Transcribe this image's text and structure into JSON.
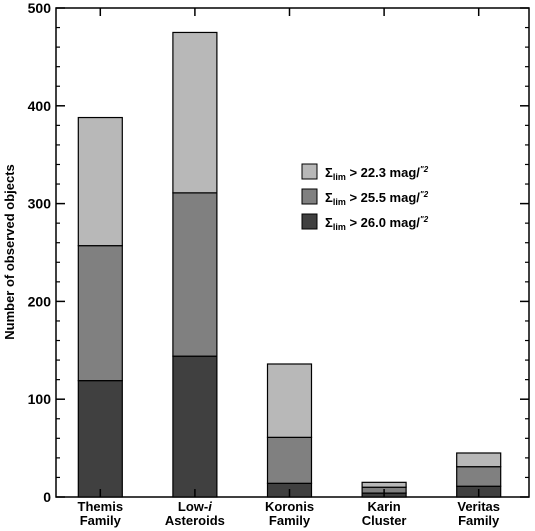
{
  "chart_data": {
    "type": "bar",
    "stacked": true,
    "categories": [
      [
        "Themis",
        "Family"
      ],
      [
        "Low-i",
        "Asteroids"
      ],
      [
        "Koronis",
        "Family"
      ],
      [
        "Karin",
        "Cluster"
      ],
      [
        "Veritas",
        "Family"
      ]
    ],
    "series": [
      {
        "name": "Σlim > 26.0 mag/\"2",
        "label_main": "Σ",
        "label_sub": "lim",
        "label_rest": " > 26.0 mag/",
        "label_sup": "\"2",
        "color": "#404040",
        "values": [
          119,
          144,
          14,
          4,
          11
        ]
      },
      {
        "name": "Σlim > 25.5 mag/\"2",
        "label_main": "Σ",
        "label_sub": "lim",
        "label_rest": " > 25.5 mag/",
        "label_sup": "\"2",
        "color": "#808080",
        "values": [
          138,
          167,
          47,
          6,
          20
        ]
      },
      {
        "name": "Σlim > 22.3 mag/\"2",
        "label_main": "Σ",
        "label_sub": "lim",
        "label_rest": " > 22.3 mag/",
        "label_sup": "\"2",
        "color": "#b8b8b8",
        "values": [
          131,
          164,
          75,
          5,
          14
        ]
      }
    ],
    "legend_order": [
      2,
      1,
      0
    ],
    "ylabel": "Number of observed objects",
    "xlabel": "",
    "ylim": [
      0,
      500
    ],
    "yticks": [
      0,
      100,
      200,
      300,
      400,
      500
    ],
    "ytick_labels": [
      "0",
      "100",
      "200",
      "300",
      "400",
      "500"
    ],
    "grid": false,
    "legend_position": "center-right"
  }
}
